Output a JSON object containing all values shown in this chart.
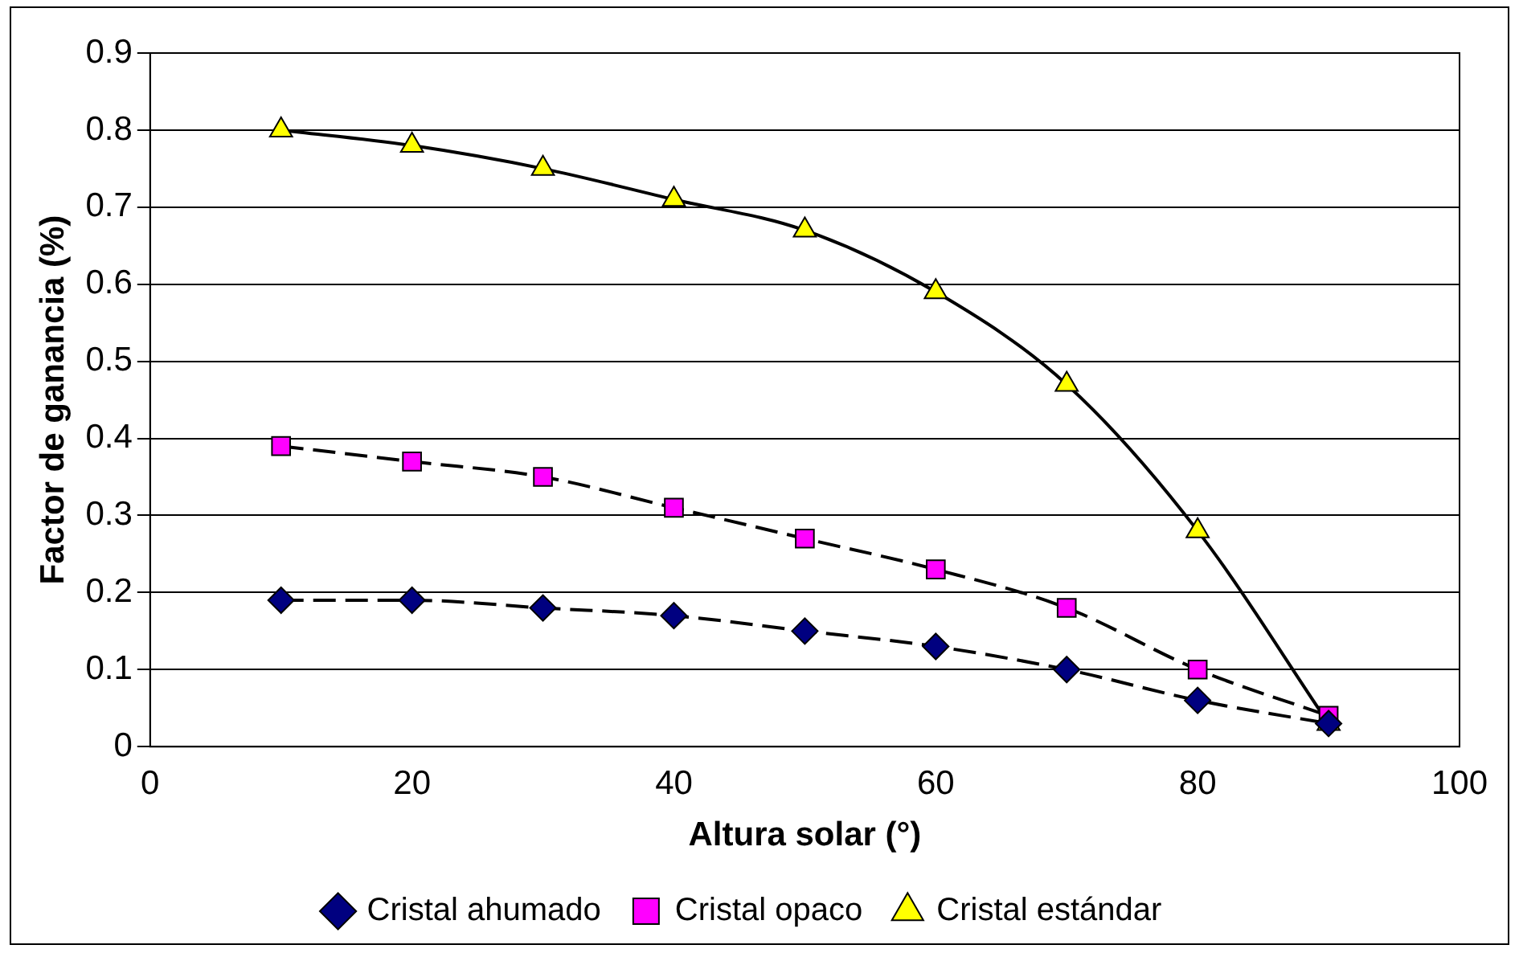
{
  "chart_data": {
    "type": "line",
    "xlabel": "Altura solar (°)",
    "ylabel": "Factor de ganancia (%)",
    "x": [
      10,
      20,
      30,
      40,
      50,
      60,
      70,
      80,
      90
    ],
    "series": [
      {
        "name": "Cristal ahumado",
        "color": "#000080",
        "marker": "diamond",
        "line_style": "dashed",
        "values": [
          0.19,
          0.19,
          0.18,
          0.17,
          0.15,
          0.13,
          0.1,
          0.06,
          0.03
        ]
      },
      {
        "name": "Cristal opaco",
        "color": "#ff00ff",
        "marker": "square",
        "line_style": "dashed",
        "values": [
          0.39,
          0.37,
          0.35,
          0.31,
          0.27,
          0.23,
          0.18,
          0.1,
          0.04
        ]
      },
      {
        "name": "Cristal estándar",
        "color": "#ffff00",
        "marker": "triangle",
        "line_style": "solid",
        "values": [
          0.8,
          0.78,
          0.75,
          0.71,
          0.67,
          0.59,
          0.47,
          0.28,
          0.03
        ]
      }
    ],
    "xlim": [
      0,
      100
    ],
    "xticks": [
      0,
      20,
      40,
      60,
      80,
      100
    ],
    "ylim": [
      0,
      0.9
    ],
    "yticks": [
      0,
      0.1,
      0.2,
      0.3,
      0.4,
      0.5,
      0.6,
      0.7,
      0.8,
      0.9
    ],
    "grid": "y",
    "legend": "bottom"
  }
}
